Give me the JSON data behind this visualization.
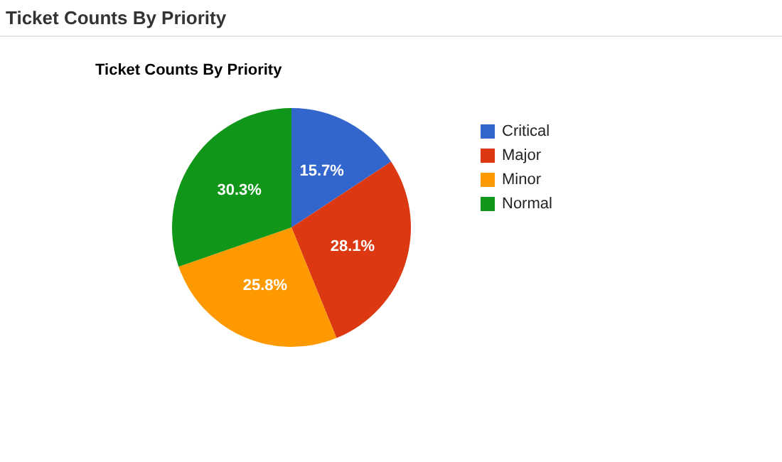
{
  "chart_data": {
    "type": "pie",
    "title": "Ticket Counts By Priority",
    "annotations": [
      "Ticket Counts By Priority"
    ],
    "categories": [
      "Critical",
      "Major",
      "Minor",
      "Normal"
    ],
    "values": [
      15.7,
      28.1,
      25.8,
      30.3
    ],
    "value_labels": [
      "15.7%",
      "28.1%",
      "25.8%",
      "30.3%"
    ],
    "colors": [
      "#3366cc",
      "#dc3912",
      "#ff9900",
      "#109618"
    ],
    "legend": "right"
  }
}
